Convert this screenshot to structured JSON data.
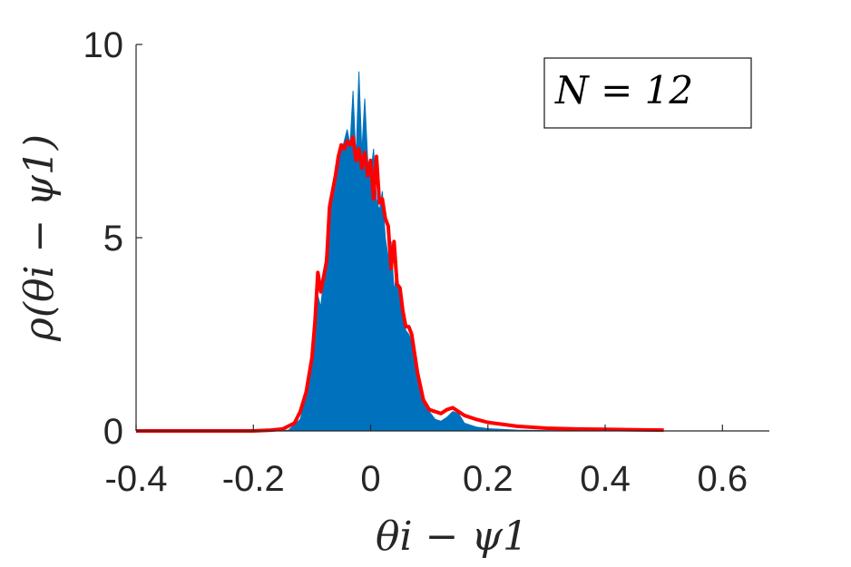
{
  "chart_data": {
    "type": "area",
    "xlabel": "θi − ψ1",
    "ylabel": "ρ(θi − ψ1)",
    "xlim": [
      -0.4,
      0.68
    ],
    "ylim": [
      0,
      10
    ],
    "x_ticks": [
      "-0.4",
      "-0.2",
      "0",
      "0.2",
      "0.4",
      "0.6"
    ],
    "x_tick_values": [
      -0.4,
      -0.2,
      0,
      0.2,
      0.4,
      0.6
    ],
    "y_ticks": [
      "0",
      "5",
      "10"
    ],
    "y_tick_values": [
      0,
      5,
      10
    ],
    "grid": false,
    "legend_position": "top-right",
    "annotation": "N = 12",
    "series": [
      {
        "kind": "histogram",
        "color": "#0072BD",
        "x": [
          -0.4,
          -0.16,
          -0.14,
          -0.12,
          -0.11,
          -0.1,
          -0.09,
          -0.085,
          -0.08,
          -0.075,
          -0.07,
          -0.065,
          -0.06,
          -0.055,
          -0.05,
          -0.045,
          -0.04,
          -0.035,
          -0.03,
          -0.025,
          -0.02,
          -0.015,
          -0.01,
          -0.005,
          0,
          0.005,
          0.01,
          0.015,
          0.02,
          0.025,
          0.03,
          0.035,
          0.04,
          0.045,
          0.05,
          0.055,
          0.06,
          0.065,
          0.07,
          0.08,
          0.09,
          0.1,
          0.11,
          0.12,
          0.13,
          0.14,
          0.15,
          0.16,
          0.18,
          0.2,
          0.25,
          0.3,
          0.4,
          0.5,
          0.68
        ],
        "values": [
          0,
          0,
          0.02,
          0.3,
          0.9,
          2.0,
          3.5,
          3.2,
          4.0,
          4.8,
          6.0,
          6.2,
          6.5,
          7.0,
          7.2,
          7.5,
          7.8,
          7.4,
          8.8,
          7.0,
          9.3,
          7.2,
          8.6,
          7.0,
          6.6,
          7.3,
          6.0,
          5.7,
          6.2,
          5.0,
          4.5,
          4.9,
          3.6,
          4.2,
          3.3,
          3.0,
          2.6,
          2.5,
          2.3,
          1.5,
          0.9,
          0.5,
          0.3,
          0.25,
          0.35,
          0.5,
          0.45,
          0.2,
          0.1,
          0.06,
          0.02,
          0.01,
          0,
          0,
          0
        ]
      },
      {
        "kind": "line",
        "color": "#FF0000",
        "x": [
          -0.4,
          -0.2,
          -0.17,
          -0.15,
          -0.13,
          -0.12,
          -0.11,
          -0.1,
          -0.095,
          -0.09,
          -0.085,
          -0.08,
          -0.075,
          -0.07,
          -0.065,
          -0.06,
          -0.055,
          -0.05,
          -0.045,
          -0.04,
          -0.035,
          -0.03,
          -0.025,
          -0.02,
          -0.015,
          -0.01,
          -0.005,
          0,
          0.005,
          0.01,
          0.015,
          0.02,
          0.025,
          0.03,
          0.035,
          0.04,
          0.045,
          0.05,
          0.055,
          0.06,
          0.065,
          0.07,
          0.075,
          0.08,
          0.09,
          0.1,
          0.11,
          0.12,
          0.13,
          0.14,
          0.15,
          0.16,
          0.18,
          0.2,
          0.25,
          0.3,
          0.35,
          0.4,
          0.45,
          0.5
        ],
        "values": [
          0,
          0,
          0.02,
          0.05,
          0.2,
          0.5,
          1.0,
          1.9,
          2.8,
          4.1,
          3.6,
          4.0,
          4.4,
          5.8,
          6.2,
          6.6,
          7.1,
          7.4,
          7.3,
          7.5,
          7.4,
          7.6,
          7.0,
          7.3,
          6.8,
          7.2,
          6.6,
          7.0,
          6.0,
          7.1,
          5.9,
          6.0,
          5.5,
          5.3,
          4.2,
          4.9,
          3.8,
          3.7,
          3.1,
          2.7,
          2.7,
          2.5,
          2.0,
          1.5,
          0.8,
          0.55,
          0.5,
          0.45,
          0.55,
          0.6,
          0.5,
          0.4,
          0.3,
          0.22,
          0.12,
          0.07,
          0.05,
          0.04,
          0.03,
          0.02
        ]
      }
    ]
  }
}
